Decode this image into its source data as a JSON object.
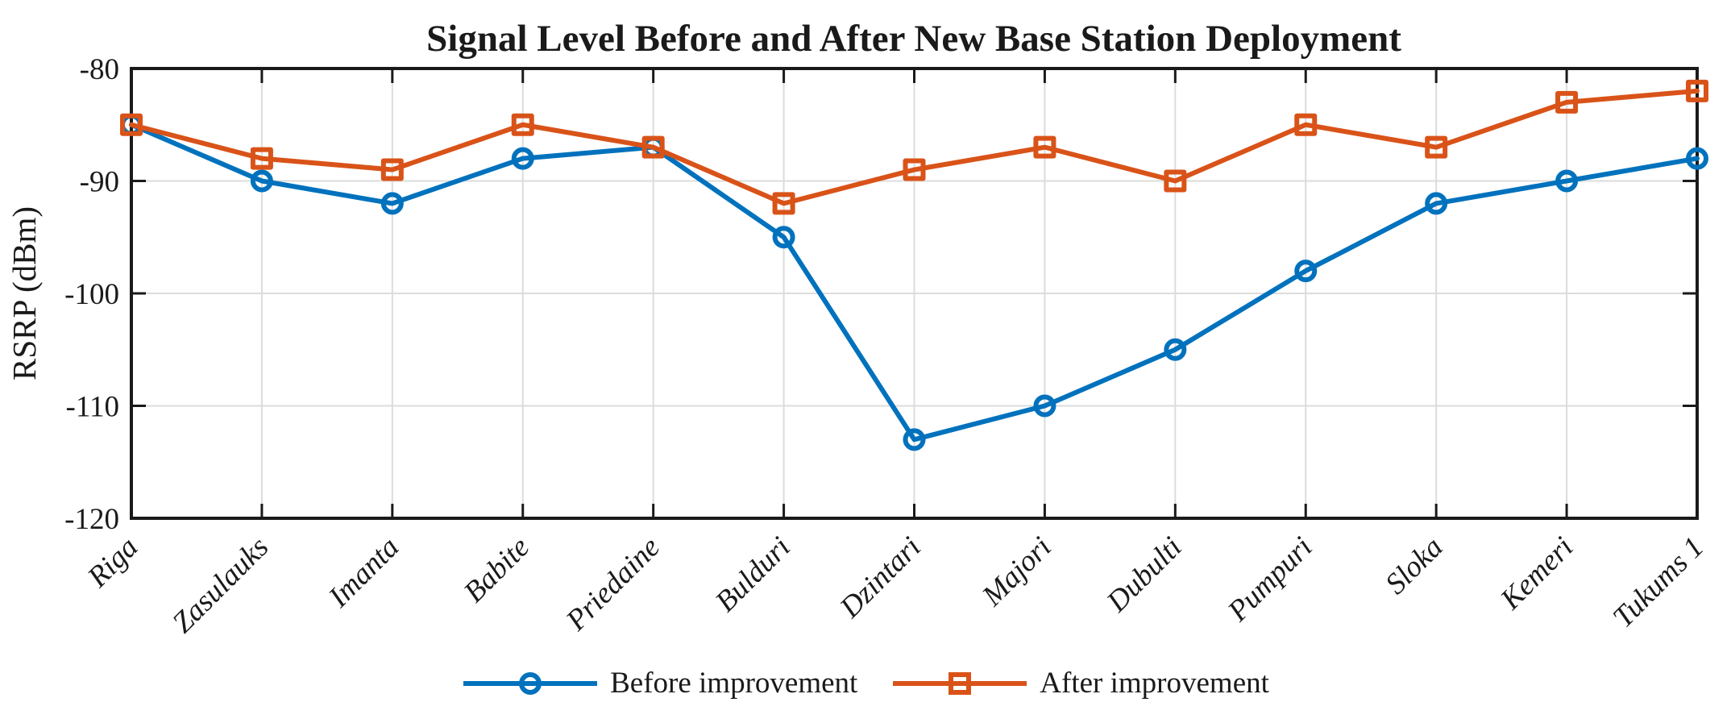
{
  "chart_data": {
    "type": "line",
    "title": "Signal Level Before and After New Base Station Deployment",
    "xlabel": "",
    "ylabel": "RSRP (dBm)",
    "categories": [
      "Riga",
      "Zasulauks",
      "Imanta",
      "Babite",
      "Priedaine",
      "Bulduri",
      "Dzintari",
      "Majori",
      "Dubulti",
      "Pumpuri",
      "Sloka",
      "Kemeri",
      "Tukums 1"
    ],
    "series": [
      {
        "name": "Before improvement",
        "marker": "circle",
        "color": "#0072BD",
        "values": [
          -85,
          -90,
          -92,
          -88,
          -87,
          -95,
          -113,
          -110,
          -105,
          -98,
          -92,
          -90,
          -88
        ]
      },
      {
        "name": "After improvement",
        "marker": "square",
        "color": "#D95319",
        "values": [
          -85,
          -88,
          -89,
          -85,
          -87,
          -92,
          -89,
          -87,
          -90,
          -85,
          -87,
          -83,
          -82
        ]
      }
    ],
    "ylim": [
      -120,
      -80
    ],
    "yticks": [
      -80,
      -90,
      -100,
      -110,
      -120
    ],
    "ytick_labels": [
      "-80",
      "-90",
      "-100",
      "-110",
      "-120"
    ],
    "grid": true,
    "legend_position": "bottom-center",
    "x_tick_label_rotation_deg": 45,
    "axis_color": "#1a1a1a",
    "grid_color": "#dcdcdc",
    "text_color": "#1a1a1a",
    "background_color": "#ffffff"
  }
}
